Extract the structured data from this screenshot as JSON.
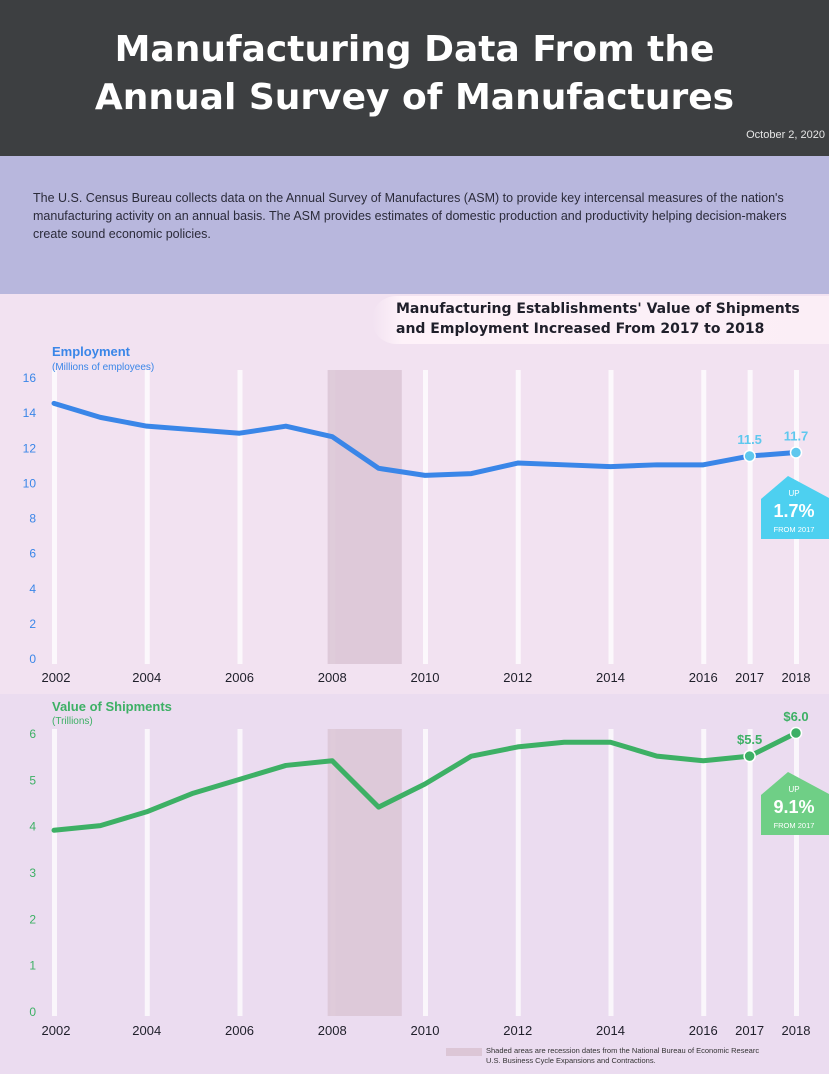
{
  "header": {
    "title_line1": "Manufacturing Data From the",
    "title_line2": "Annual Survey of Manufactures",
    "date": "October 2, 2020"
  },
  "intro": {
    "text": "The U.S. Census Bureau collects data on the Annual Survey of Manufactures (ASM) to provide key intercensal measures of the nation's manufacturing activity on an annual basis. The ASM provides estimates of domestic production and productivity helping decision-makers create sound economic policies."
  },
  "section": {
    "title_line1": "Manufacturing Establishments' Value of Shipments",
    "title_line2": "and Employment Increased From 2017 to 2018"
  },
  "chart_data": [
    {
      "type": "line",
      "title": "Employment",
      "ylabel": "(Millions of employees)",
      "x": [
        2002,
        2003,
        2004,
        2005,
        2006,
        2007,
        2008,
        2009,
        2010,
        2011,
        2012,
        2013,
        2014,
        2015,
        2016,
        2017,
        2018
      ],
      "x_tick_labels": [
        "2002",
        "2004",
        "2006",
        "2008",
        "2010",
        "2012",
        "2014",
        "2016",
        "2017",
        "2018"
      ],
      "series": [
        {
          "values": [
            14.5,
            13.7,
            13.2,
            13.0,
            12.8,
            13.2,
            12.6,
            10.8,
            10.4,
            10.5,
            11.1,
            11.0,
            10.9,
            11.0,
            11.0,
            11.5,
            11.7
          ]
        }
      ],
      "yticks": [
        "0",
        "2",
        "4",
        "6",
        "8",
        "10",
        "12",
        "14",
        "16"
      ],
      "ylim": [
        0,
        16
      ],
      "color": "#3a86e8",
      "point_labels": [
        "11.5",
        "11.7"
      ],
      "callout": {
        "top": "UP",
        "value": "1.7%",
        "bottom": "FROM 2017",
        "color": "#4dd0f0"
      },
      "recession": [
        2007.9,
        2009.5
      ]
    },
    {
      "type": "line",
      "title": "Value of Shipments",
      "ylabel": "(Trillions)",
      "x": [
        2002,
        2003,
        2004,
        2005,
        2006,
        2007,
        2008,
        2009,
        2010,
        2011,
        2012,
        2013,
        2014,
        2015,
        2016,
        2017,
        2018
      ],
      "x_tick_labels": [
        "2002",
        "2004",
        "2006",
        "2008",
        "2010",
        "2012",
        "2014",
        "2016",
        "2017",
        "2018"
      ],
      "series": [
        {
          "values": [
            3.9,
            4.0,
            4.3,
            4.7,
            5.0,
            5.3,
            5.4,
            4.4,
            4.9,
            5.5,
            5.7,
            5.8,
            5.8,
            5.5,
            5.4,
            5.5,
            6.0
          ]
        }
      ],
      "yticks": [
        "0",
        "1",
        "2",
        "3",
        "4",
        "5",
        "6"
      ],
      "ylim": [
        0,
        6
      ],
      "color": "#3db065",
      "point_labels": [
        "$5.5",
        "$6.0"
      ],
      "callout": {
        "top": "UP",
        "value": "9.1%",
        "bottom": "FROM 2017",
        "color": "#6fcf86"
      },
      "recession": [
        2007.9,
        2009.5
      ]
    }
  ],
  "footnote": {
    "line1": "Shaded areas are recession dates from the National Bureau of Economic Researc",
    "line2": "U.S. Business Cycle Expansions and Contractions."
  }
}
